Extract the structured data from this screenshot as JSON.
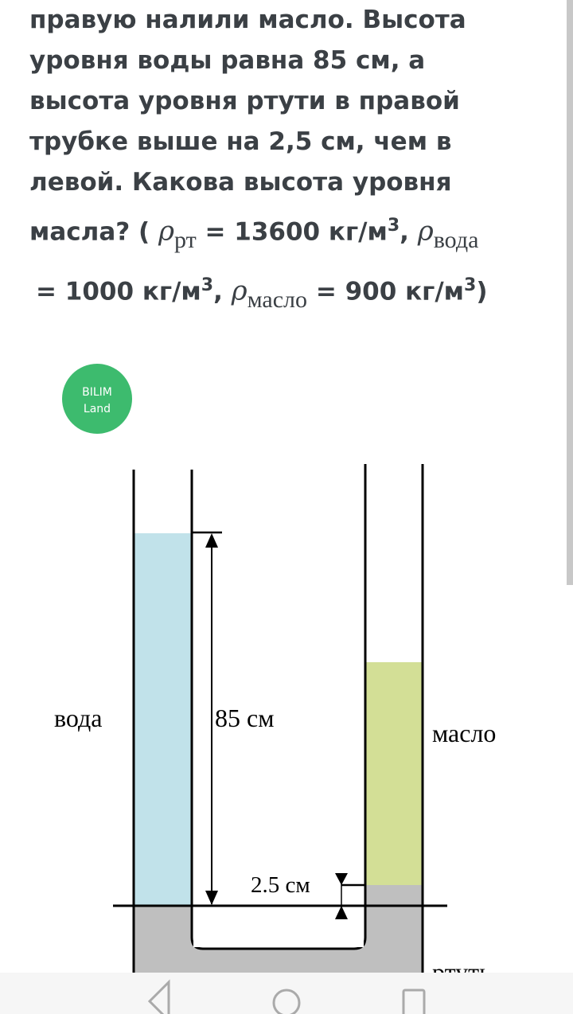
{
  "question": {
    "line1": "правую налили масло. Высота",
    "line2": "уровня воды равна 85 см, а",
    "line3": "высота уровня ртути в правой",
    "line4": "трубке выше на 2,5 см, чем в",
    "line5": "левой. Какова высота уровня",
    "line6_a": "масла? (",
    "rho": "ρ",
    "sub_rt": "рт",
    "val_rt": "= 13600 кг/м",
    "sub_voda": "вода",
    "val_voda": "= 1000 кг/м",
    "sub_maslo": "масло",
    "val_maslo": "= 900 кг/м",
    "exp": "3",
    "close": ")"
  },
  "logo": {
    "line1": "BILIM",
    "line2": "Land",
    "color": "#3dbb6e"
  },
  "diagram": {
    "water_label": "вода",
    "oil_label": "масло",
    "mercury_label": "ртуть",
    "height_label": "85 см",
    "diff_label": "2.5 см",
    "colors": {
      "water": "#c1e2ea",
      "oil": "#d3df96",
      "mercury": "#bfbfbf"
    }
  },
  "nav": {
    "back": "back-icon",
    "home": "home-icon",
    "recents": "recents-icon"
  }
}
